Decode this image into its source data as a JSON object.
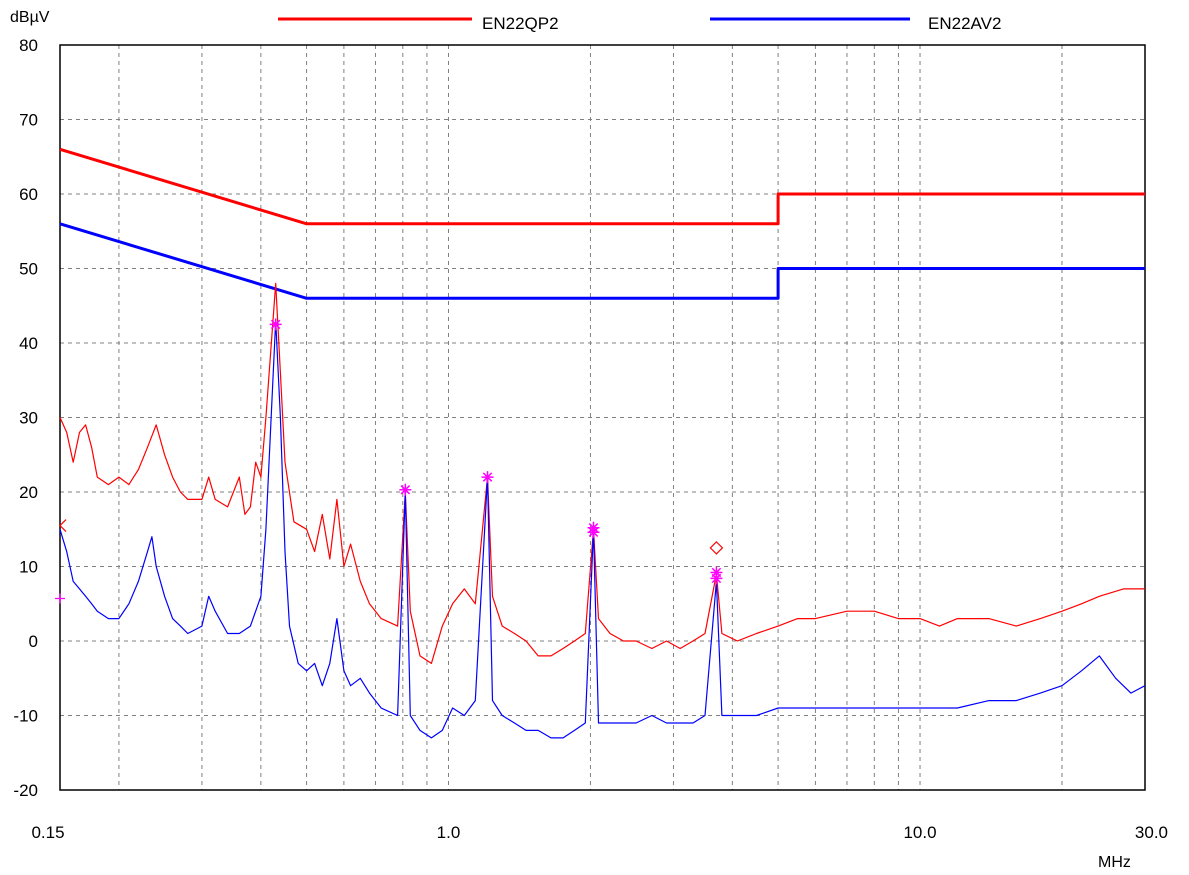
{
  "chart_data": {
    "type": "line",
    "y_unit": "dBµV",
    "x_unit": "MHz",
    "x_scale": "log",
    "xlim": [
      0.15,
      30.0
    ],
    "ylim": [
      -20,
      80
    ],
    "grid": true,
    "legend_position": "top",
    "x_tick_labels": [
      {
        "value": 0.15,
        "label": "0.15"
      },
      {
        "value": 1.0,
        "label": "1.0"
      },
      {
        "value": 10.0,
        "label": "10.0"
      },
      {
        "value": 30.0,
        "label": "30.0"
      }
    ],
    "y_ticks": [
      80,
      70,
      60,
      50,
      40,
      30,
      20,
      10,
      0,
      -10,
      -20
    ],
    "colors": {
      "qp_limit": "#ff0000",
      "av_limit": "#0000ff",
      "qp_trace": "#ff0000",
      "av_trace": "#0000ff",
      "markers": "#ff00ff",
      "grid": "#808080"
    },
    "series": [
      {
        "name": "EN22QP2",
        "role": "limit",
        "points": [
          [
            0.15,
            66
          ],
          [
            0.5,
            56
          ],
          [
            5.0,
            56
          ],
          [
            5.0,
            60
          ],
          [
            30.0,
            60
          ]
        ]
      },
      {
        "name": "EN22AV2",
        "role": "limit",
        "points": [
          [
            0.15,
            56
          ],
          [
            0.5,
            46
          ],
          [
            5.0,
            46
          ],
          [
            5.0,
            50
          ],
          [
            30.0,
            50
          ]
        ]
      },
      {
        "role": "measurement_qp",
        "points": [
          [
            0.15,
            30
          ],
          [
            0.155,
            28
          ],
          [
            0.16,
            24
          ],
          [
            0.165,
            28
          ],
          [
            0.17,
            29
          ],
          [
            0.175,
            26
          ],
          [
            0.18,
            22
          ],
          [
            0.19,
            21
          ],
          [
            0.2,
            22
          ],
          [
            0.21,
            21
          ],
          [
            0.22,
            23
          ],
          [
            0.23,
            26
          ],
          [
            0.24,
            29
          ],
          [
            0.25,
            25
          ],
          [
            0.26,
            22
          ],
          [
            0.27,
            20
          ],
          [
            0.28,
            19
          ],
          [
            0.3,
            19
          ],
          [
            0.31,
            22
          ],
          [
            0.32,
            19
          ],
          [
            0.34,
            18
          ],
          [
            0.36,
            22
          ],
          [
            0.37,
            17
          ],
          [
            0.38,
            18
          ],
          [
            0.39,
            24
          ],
          [
            0.4,
            22
          ],
          [
            0.41,
            30
          ],
          [
            0.43,
            48
          ],
          [
            0.44,
            36
          ],
          [
            0.45,
            24
          ],
          [
            0.47,
            16
          ],
          [
            0.5,
            15
          ],
          [
            0.52,
            12
          ],
          [
            0.54,
            17
          ],
          [
            0.56,
            11
          ],
          [
            0.58,
            19
          ],
          [
            0.6,
            10
          ],
          [
            0.62,
            13
          ],
          [
            0.65,
            8
          ],
          [
            0.68,
            5
          ],
          [
            0.72,
            3
          ],
          [
            0.78,
            2
          ],
          [
            0.81,
            20
          ],
          [
            0.83,
            4
          ],
          [
            0.87,
            -2
          ],
          [
            0.92,
            -3
          ],
          [
            0.97,
            2
          ],
          [
            1.02,
            5
          ],
          [
            1.08,
            7
          ],
          [
            1.14,
            5
          ],
          [
            1.21,
            22
          ],
          [
            1.24,
            6
          ],
          [
            1.3,
            2
          ],
          [
            1.38,
            1
          ],
          [
            1.46,
            0
          ],
          [
            1.55,
            -2
          ],
          [
            1.65,
            -2
          ],
          [
            1.75,
            -1
          ],
          [
            1.85,
            0
          ],
          [
            1.95,
            1
          ],
          [
            2.03,
            15
          ],
          [
            2.08,
            3
          ],
          [
            2.2,
            1
          ],
          [
            2.35,
            0
          ],
          [
            2.5,
            0
          ],
          [
            2.7,
            -1
          ],
          [
            2.9,
            0
          ],
          [
            3.1,
            -1
          ],
          [
            3.3,
            0
          ],
          [
            3.5,
            1
          ],
          [
            3.7,
            9
          ],
          [
            3.8,
            1
          ],
          [
            4.1,
            0
          ],
          [
            4.5,
            1
          ],
          [
            5.0,
            2
          ],
          [
            5.5,
            3
          ],
          [
            6.0,
            3
          ],
          [
            7.0,
            4
          ],
          [
            8.0,
            4
          ],
          [
            9.0,
            3
          ],
          [
            10.0,
            3
          ],
          [
            11.0,
            2
          ],
          [
            12.0,
            3
          ],
          [
            14.0,
            3
          ],
          [
            16.0,
            2
          ],
          [
            18.0,
            3
          ],
          [
            20.0,
            4
          ],
          [
            22.0,
            5
          ],
          [
            24.0,
            6
          ],
          [
            27.0,
            7
          ],
          [
            30.0,
            7
          ]
        ]
      },
      {
        "role": "measurement_av",
        "points": [
          [
            0.15,
            15
          ],
          [
            0.155,
            12
          ],
          [
            0.16,
            8
          ],
          [
            0.165,
            7
          ],
          [
            0.17,
            6
          ],
          [
            0.175,
            5
          ],
          [
            0.18,
            4
          ],
          [
            0.19,
            3
          ],
          [
            0.2,
            3
          ],
          [
            0.21,
            5
          ],
          [
            0.22,
            8
          ],
          [
            0.23,
            12
          ],
          [
            0.235,
            14
          ],
          [
            0.24,
            10
          ],
          [
            0.25,
            6
          ],
          [
            0.26,
            3
          ],
          [
            0.27,
            2
          ],
          [
            0.28,
            1
          ],
          [
            0.3,
            2
          ],
          [
            0.31,
            6
          ],
          [
            0.32,
            4
          ],
          [
            0.34,
            1
          ],
          [
            0.36,
            1
          ],
          [
            0.38,
            2
          ],
          [
            0.4,
            6
          ],
          [
            0.41,
            15
          ],
          [
            0.43,
            43
          ],
          [
            0.44,
            30
          ],
          [
            0.45,
            12
          ],
          [
            0.46,
            2
          ],
          [
            0.48,
            -3
          ],
          [
            0.5,
            -4
          ],
          [
            0.52,
            -3
          ],
          [
            0.54,
            -6
          ],
          [
            0.56,
            -3
          ],
          [
            0.58,
            3
          ],
          [
            0.6,
            -4
          ],
          [
            0.62,
            -6
          ],
          [
            0.65,
            -5
          ],
          [
            0.68,
            -7
          ],
          [
            0.72,
            -9
          ],
          [
            0.78,
            -10
          ],
          [
            0.81,
            20
          ],
          [
            0.83,
            -10
          ],
          [
            0.87,
            -12
          ],
          [
            0.92,
            -13
          ],
          [
            0.97,
            -12
          ],
          [
            1.02,
            -9
          ],
          [
            1.08,
            -10
          ],
          [
            1.14,
            -8
          ],
          [
            1.21,
            22
          ],
          [
            1.24,
            -8
          ],
          [
            1.3,
            -10
          ],
          [
            1.38,
            -11
          ],
          [
            1.46,
            -12
          ],
          [
            1.55,
            -12
          ],
          [
            1.65,
            -13
          ],
          [
            1.75,
            -13
          ],
          [
            1.85,
            -12
          ],
          [
            1.95,
            -11
          ],
          [
            2.03,
            15
          ],
          [
            2.08,
            -11
          ],
          [
            2.2,
            -11
          ],
          [
            2.35,
            -11
          ],
          [
            2.5,
            -11
          ],
          [
            2.7,
            -10
          ],
          [
            2.9,
            -11
          ],
          [
            3.1,
            -11
          ],
          [
            3.3,
            -11
          ],
          [
            3.5,
            -10
          ],
          [
            3.7,
            8
          ],
          [
            3.8,
            -10
          ],
          [
            4.1,
            -10
          ],
          [
            4.5,
            -10
          ],
          [
            5.0,
            -9
          ],
          [
            5.5,
            -9
          ],
          [
            6.0,
            -9
          ],
          [
            7.0,
            -9
          ],
          [
            8.0,
            -9
          ],
          [
            9.0,
            -9
          ],
          [
            10.0,
            -9
          ],
          [
            11.0,
            -9
          ],
          [
            12.0,
            -9
          ],
          [
            14.0,
            -8
          ],
          [
            16.0,
            -8
          ],
          [
            18.0,
            -7
          ],
          [
            20.0,
            -6
          ],
          [
            22.0,
            -4
          ],
          [
            24.0,
            -2
          ],
          [
            26.0,
            -5
          ],
          [
            28.0,
            -7
          ],
          [
            30.0,
            -6
          ]
        ]
      }
    ],
    "peak_markers": [
      {
        "x": 0.43,
        "y": 42.5,
        "symbol": "asterisk"
      },
      {
        "x": 0.81,
        "y": 20.3,
        "symbol": "asterisk"
      },
      {
        "x": 1.21,
        "y": 22.0,
        "symbol": "asterisk"
      },
      {
        "x": 2.03,
        "y": 15.2,
        "symbol": "asterisk"
      },
      {
        "x": 2.03,
        "y": 14.6,
        "symbol": "asterisk"
      },
      {
        "x": 3.7,
        "y": 9.2,
        "symbol": "asterisk"
      },
      {
        "x": 3.7,
        "y": 8.4,
        "symbol": "asterisk"
      },
      {
        "x": 3.7,
        "y": 12.5,
        "symbol": "diamond"
      }
    ],
    "edge_markers": [
      {
        "x": 0.15,
        "y": 15.5,
        "symbol": "less-than"
      },
      {
        "x": 0.15,
        "y": 5.7,
        "symbol": "plus"
      }
    ]
  }
}
